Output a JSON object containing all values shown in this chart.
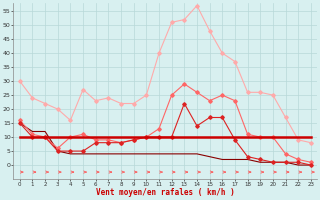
{
  "x": [
    0,
    1,
    2,
    3,
    4,
    5,
    6,
    7,
    8,
    9,
    10,
    11,
    12,
    13,
    14,
    15,
    16,
    17,
    18,
    19,
    20,
    21,
    22,
    23
  ],
  "rafales_max": [
    30,
    24,
    22,
    20,
    16,
    27,
    23,
    24,
    22,
    22,
    25,
    40,
    51,
    52,
    57,
    48,
    40,
    37,
    26,
    26,
    25,
    17,
    9,
    8
  ],
  "vent_moyen": [
    16,
    11,
    10,
    6,
    10,
    11,
    9,
    9,
    8,
    9,
    10,
    13,
    25,
    29,
    26,
    23,
    25,
    23,
    11,
    10,
    10,
    4,
    2,
    1
  ],
  "vent_min": [
    15,
    10,
    10,
    5,
    5,
    5,
    8,
    8,
    8,
    9,
    10,
    10,
    10,
    22,
    14,
    17,
    17,
    9,
    3,
    2,
    1,
    1,
    1,
    0
  ],
  "rafales_flat": [
    10,
    10,
    10,
    10,
    10,
    10,
    10,
    10,
    10,
    10,
    10,
    10,
    10,
    10,
    10,
    10,
    10,
    10,
    10,
    10,
    10,
    10,
    10,
    10
  ],
  "dark_line": [
    15,
    12,
    12,
    5,
    4,
    4,
    4,
    4,
    4,
    4,
    4,
    4,
    4,
    4,
    4,
    3,
    2,
    2,
    2,
    1,
    1,
    1,
    0,
    0
  ],
  "background_color": "#d8f0f0",
  "grid_color": "#b8d8d8",
  "color_light_pink": "#ffaaaa",
  "color_medium_red": "#ff6666",
  "color_red": "#dd2222",
  "color_dark_red": "#cc0000",
  "color_darkest_red": "#880000",
  "arrow_color": "#ff5555",
  "ylabel_values": [
    0,
    5,
    10,
    15,
    20,
    25,
    30,
    35,
    40,
    45,
    50,
    55
  ],
  "xlabel": "Vent moyen/en rafales ( km/h )",
  "ylim": [
    -5,
    58
  ],
  "xlim": [
    -0.5,
    23.5
  ]
}
